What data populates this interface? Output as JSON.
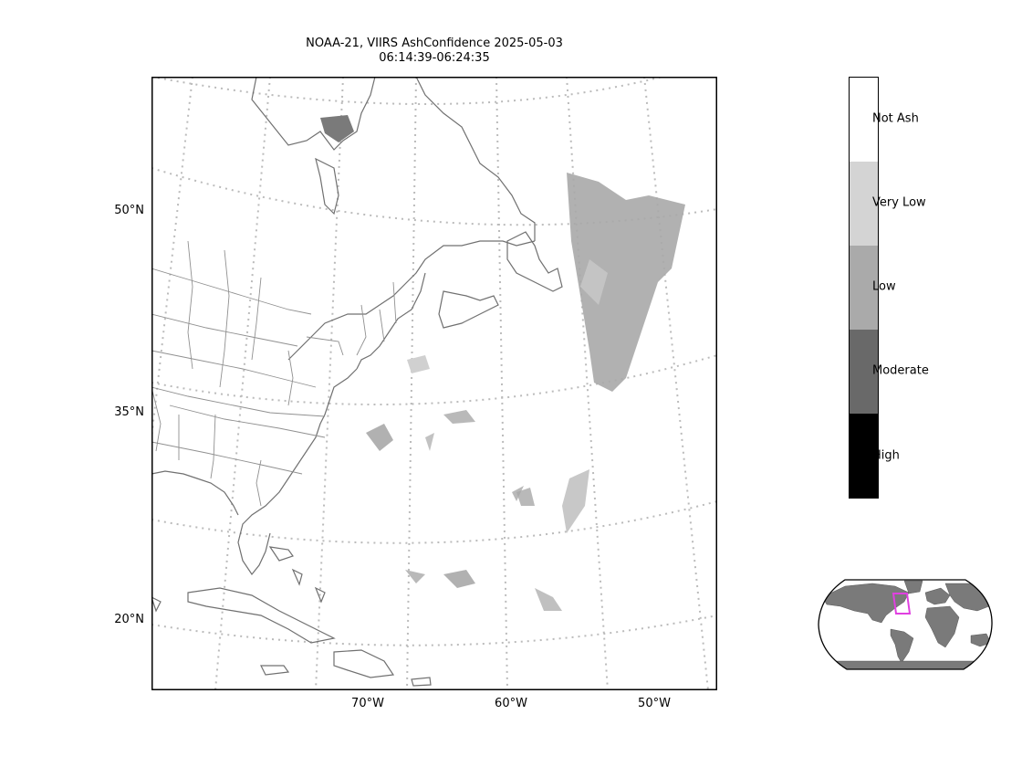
{
  "title": {
    "line1": "NOAA-21, VIIRS AshConfidence 2025-05-03",
    "line2": "06:14:39-06:24:35"
  },
  "map": {
    "lat_labels": [
      "50°N",
      "35°N",
      "20°N"
    ],
    "lon_labels": [
      "70°W",
      "60°W",
      "50°W"
    ],
    "coastline_color": "#707070",
    "graticule_color": "#bbbbbb",
    "ash_color": "#a8a8a8"
  },
  "colorbar": {
    "categories": [
      {
        "label": "Not Ash",
        "color": "#ffffff"
      },
      {
        "label": "Very Low",
        "color": "#d4d4d4"
      },
      {
        "label": "Low",
        "color": "#aaaaaa"
      },
      {
        "label": "Moderate",
        "color": "#696969"
      },
      {
        "label": "High",
        "color": "#000000"
      }
    ]
  },
  "inset": {
    "land_color": "#7a7a7a",
    "highlight_color": "#e040e0"
  }
}
